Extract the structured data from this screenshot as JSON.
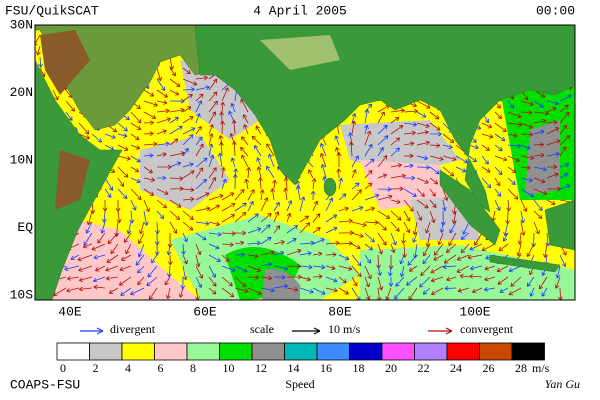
{
  "header": {
    "source": "FSU/QuikSCAT",
    "date": "4 April 2005",
    "time": "00:00"
  },
  "map": {
    "lat_labels": [
      "30N",
      "20N",
      "10N",
      "EQ",
      "10S"
    ],
    "lon_labels": [
      "40E",
      "60E",
      "80E",
      "100E"
    ]
  },
  "legend": {
    "divergent": "divergent",
    "scale": "scale",
    "scale_value": "10 m/s",
    "convergent": "convergent",
    "divergent_color": "#1a3cff",
    "convergent_color": "#b01010"
  },
  "colorbar": {
    "ticks": [
      0,
      2,
      4,
      6,
      8,
      10,
      12,
      14,
      16,
      18,
      20,
      22,
      24,
      26,
      28
    ],
    "colors": [
      "#ffffff",
      "#c8c8c8",
      "#ffff00",
      "#ffc8c8",
      "#98f898",
      "#00e000",
      "#909090",
      "#00b8b8",
      "#3c8cff",
      "#0000c8",
      "#ff50ff",
      "#b080ff",
      "#ff0000",
      "#c84800",
      "#000000"
    ],
    "unit": "m/s",
    "label": "Speed"
  },
  "footer": {
    "left": "COAPS-FSU",
    "right": "Yan Gu"
  }
}
